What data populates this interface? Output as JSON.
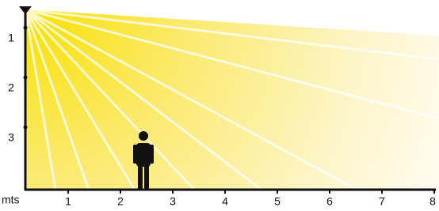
{
  "vertical_axis": {
    "labels": [
      "1",
      "2",
      "3"
    ]
  },
  "horizontal_axis": {
    "unit": "mts",
    "labels": [
      "1",
      "2",
      "3",
      "4",
      "5",
      "6",
      "7",
      "8"
    ]
  }
}
